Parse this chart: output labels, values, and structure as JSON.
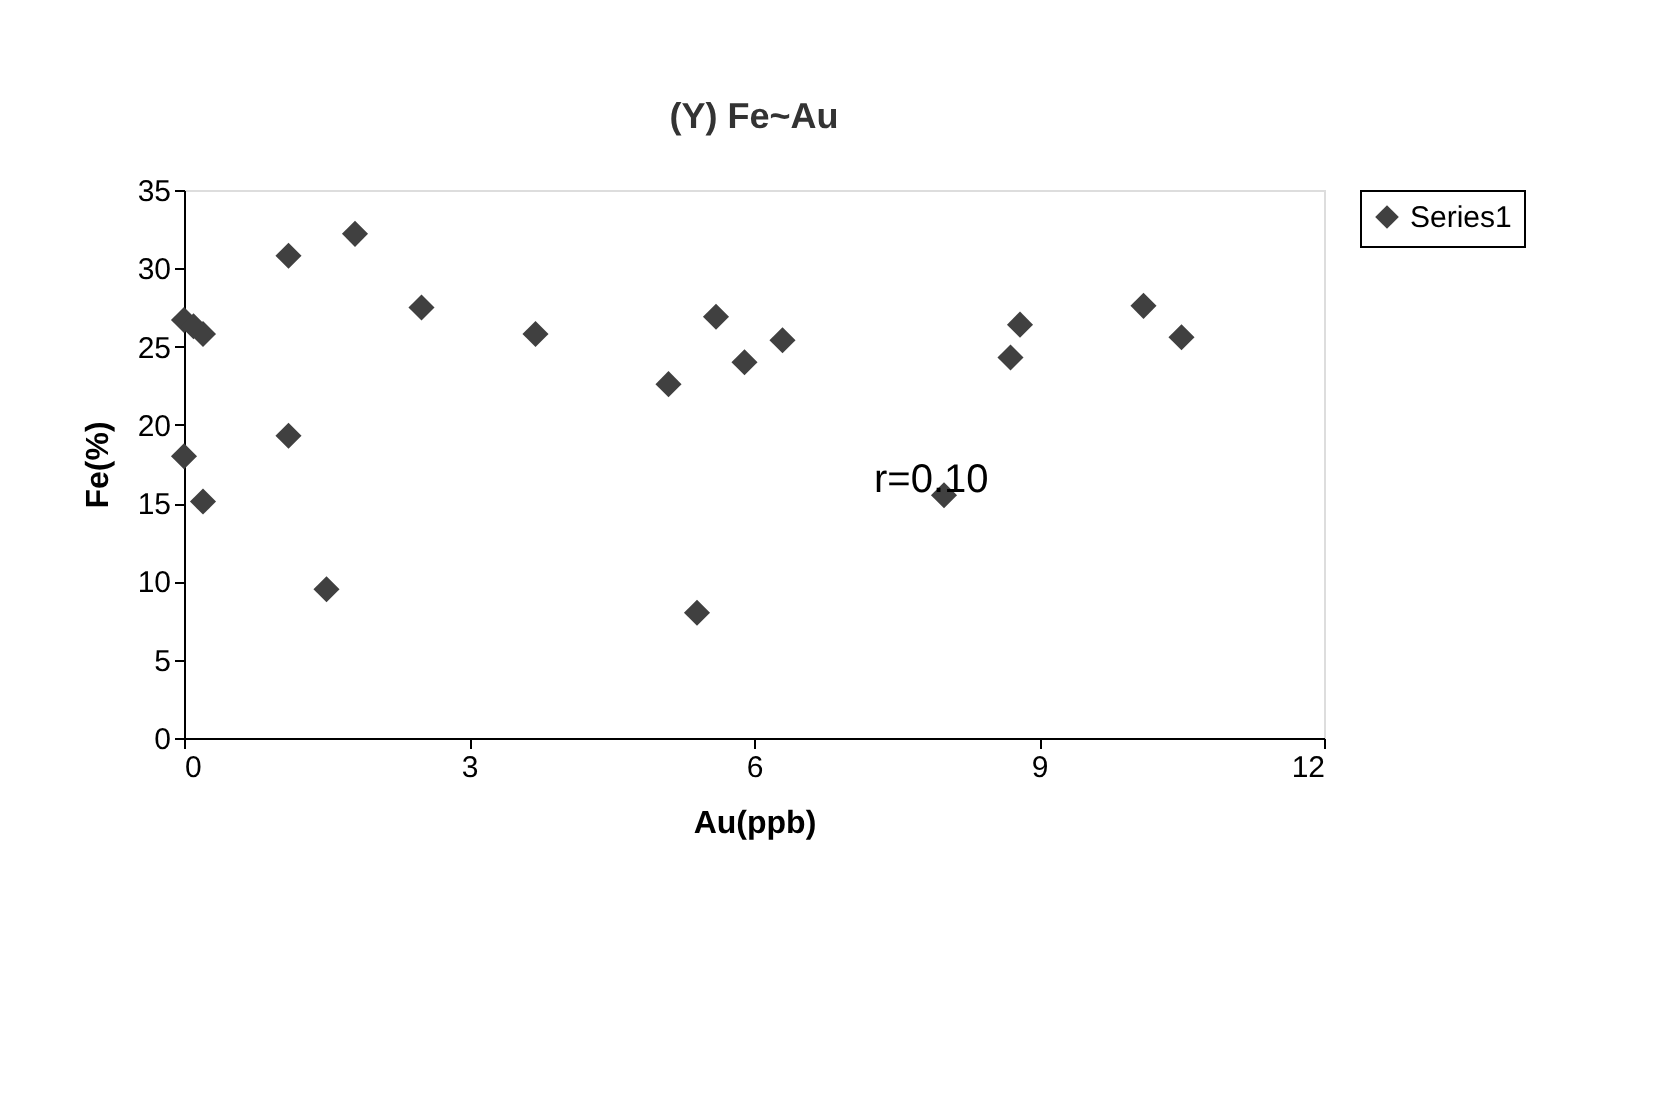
{
  "chart_data": {
    "type": "scatter",
    "title": "(Y) Fe~Au",
    "xlabel": "Au(ppb)",
    "ylabel": "Fe(%)",
    "x": [
      0,
      0.1,
      0.2,
      0,
      0.2,
      1.1,
      1.1,
      1.5,
      1.8,
      2.5,
      3.7,
      5.1,
      5.4,
      5.6,
      5.9,
      6.3,
      8.0,
      8.7,
      8.8,
      10.1,
      10.5
    ],
    "series": [
      {
        "name": "Series1",
        "color": "#404040",
        "values": [
          26.7,
          26.3,
          25.8,
          18,
          15.1,
          30.8,
          19.3,
          9.5,
          32.2,
          27.5,
          25.8,
          22.6,
          8,
          26.9,
          24,
          25.4,
          15.5,
          24.3,
          26.4,
          27.6,
          25.6
        ]
      }
    ],
    "xlim": [
      0,
      12
    ],
    "xticks": [
      0,
      3,
      6,
      9,
      12
    ],
    "ylim": [
      0,
      35
    ],
    "yticks": [
      0,
      5,
      10,
      15,
      20,
      25,
      30,
      35
    ],
    "annotations": [
      "r=0.10"
    ],
    "marker": "diamond",
    "legend": "right",
    "grid": false
  }
}
